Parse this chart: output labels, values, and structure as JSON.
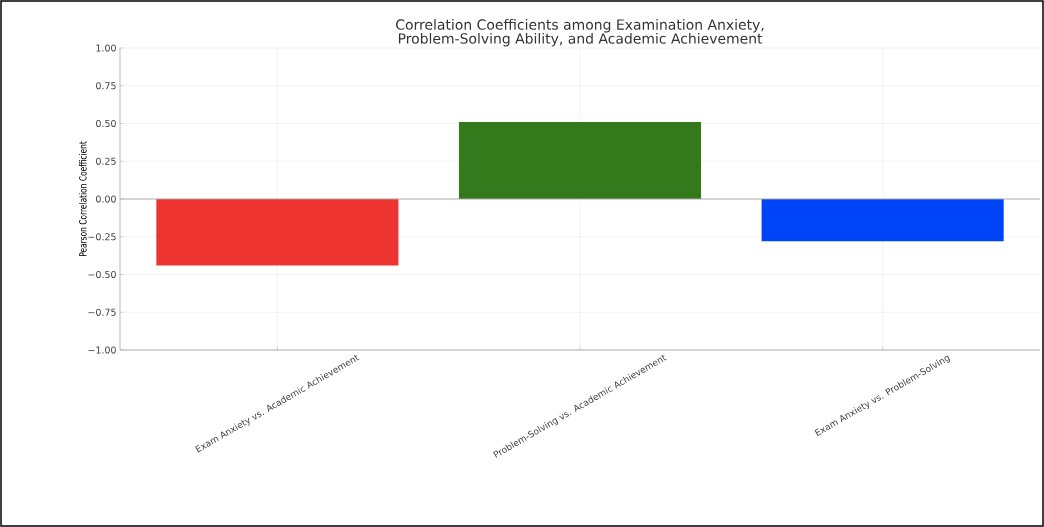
{
  "chart_data": {
    "type": "bar",
    "title": "Correlation Coefficients among Examination Anxiety,\nProblem-Solving Ability, and Academic Achievement",
    "ylabel": "Pearson Correlation Coefficient",
    "categories": [
      "Exam Anxiety vs. Academic Achievement",
      "Problem-Solving vs. Academic Achievement",
      "Exam Anxiety vs. Problem-Solving"
    ],
    "values": [
      -0.44,
      0.51,
      -0.28
    ],
    "colors": [
      "#ee3430",
      "#347a1c",
      "#0044f8"
    ],
    "ylim": [
      -1,
      1
    ],
    "yticks": [
      {
        "value": -1,
        "label": "−1.00"
      },
      {
        "value": -0.75,
        "label": "−0.75"
      },
      {
        "value": -0.5,
        "label": "−0.50"
      },
      {
        "value": -0.25,
        "label": "−0.25"
      },
      {
        "value": 0,
        "label": "0.00"
      },
      {
        "value": 0.25,
        "label": "0.25"
      },
      {
        "value": 0.5,
        "label": "0.50"
      },
      {
        "value": 0.75,
        "label": "0.75"
      },
      {
        "value": 1,
        "label": "1.00"
      }
    ],
    "ref_lines": [
      {
        "axis": "y",
        "value": 0,
        "color": "#aaaaaa"
      }
    ],
    "grid": true
  }
}
